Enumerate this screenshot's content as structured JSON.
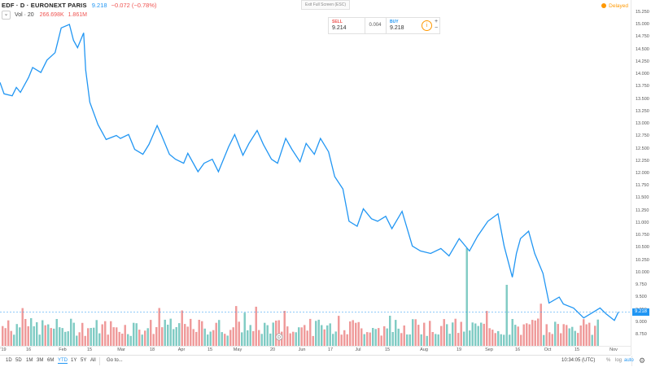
{
  "header": {
    "symbol": "EDF · D · EURONEXT PARIS",
    "last": "9.218",
    "change": "−0.072 (−0.78%)",
    "vol_name": "Vol · 20",
    "vol_value": "266.698K",
    "vol_ma": "1.861M",
    "chevron": "⌄",
    "exit_fullscreen": "Exit Full Screen (ESC)",
    "delayed": "Delayed"
  },
  "trade": {
    "sell_label": "SELL",
    "sell_price": "9.214",
    "spread": "0.004",
    "buy_label": "BUY",
    "buy_price": "9.218",
    "info": "i",
    "plus": "+",
    "minus": "−"
  },
  "price_ticks": [
    "15.250",
    "15.000",
    "14.750",
    "14.500",
    "14.250",
    "14.000",
    "13.750",
    "13.500",
    "13.250",
    "13.000",
    "12.750",
    "12.500",
    "12.250",
    "12.000",
    "11.750",
    "11.500",
    "11.250",
    "11.000",
    "10.750",
    "10.500",
    "10.250",
    "10.000",
    "9.750",
    "9.500",
    "9.250",
    "9.000",
    "8.750"
  ],
  "price_tag": "9.218",
  "time_labels": [
    "'19",
    "16",
    "Feb",
    "15",
    "Mar",
    "18",
    "Apr",
    "15",
    "May",
    "20",
    "Jun",
    "17",
    "Jul",
    "15",
    "Aug",
    "19",
    "Sep",
    "16",
    "Oct",
    "15",
    "Nov"
  ],
  "toolbar": {
    "ranges": [
      "1D",
      "5D",
      "1M",
      "3M",
      "6M",
      "YTD",
      "1Y",
      "5Y",
      "All"
    ],
    "active_range": "YTD",
    "goto": "Go to...",
    "clock": "10:34:05 (UTC)",
    "percent": "%",
    "log": "log",
    "auto": "auto",
    "settings_icon": "gear-icon"
  },
  "marker": "D",
  "colors": {
    "line": "#2196f3",
    "vol_up": "#80cbc4",
    "vol_down": "#ef9a9a"
  },
  "chart_data": {
    "type": "line",
    "title": "EDF · D · EURONEXT PARIS",
    "y_range": [
      8.6,
      15.4
    ],
    "x_range": [
      "2019-01-01",
      "2019-11-02"
    ],
    "series": [
      {
        "name": "EDF",
        "x": [
          "2019-01-01",
          "2019-01-03",
          "2019-01-07",
          "2019-01-09",
          "2019-01-11",
          "2019-01-15",
          "2019-01-17",
          "2019-01-21",
          "2019-01-24",
          "2019-01-28",
          "2019-01-31",
          "2019-02-04",
          "2019-02-06",
          "2019-02-08",
          "2019-02-11",
          "2019-02-12",
          "2019-02-14",
          "2019-02-18",
          "2019-02-22",
          "2019-02-27",
          "2019-03-01",
          "2019-03-05",
          "2019-03-08",
          "2019-03-12",
          "2019-03-15",
          "2019-03-19",
          "2019-03-21",
          "2019-03-25",
          "2019-03-28",
          "2019-04-01",
          "2019-04-03",
          "2019-04-08",
          "2019-04-11",
          "2019-04-15",
          "2019-04-18",
          "2019-04-23",
          "2019-04-26",
          "2019-04-30",
          "2019-05-03",
          "2019-05-07",
          "2019-05-10",
          "2019-05-14",
          "2019-05-17",
          "2019-05-21",
          "2019-05-24",
          "2019-05-28",
          "2019-05-31",
          "2019-06-04",
          "2019-06-07",
          "2019-06-11",
          "2019-06-14",
          "2019-06-18",
          "2019-06-21",
          "2019-06-25",
          "2019-06-28",
          "2019-07-02",
          "2019-07-05",
          "2019-07-09",
          "2019-07-12",
          "2019-07-17",
          "2019-07-22",
          "2019-07-26",
          "2019-07-31",
          "2019-08-05",
          "2019-08-09",
          "2019-08-14",
          "2019-08-19",
          "2019-08-23",
          "2019-08-28",
          "2019-09-02",
          "2019-09-05",
          "2019-09-09",
          "2019-09-11",
          "2019-09-13",
          "2019-09-17",
          "2019-09-20",
          "2019-09-24",
          "2019-09-27",
          "2019-10-02",
          "2019-10-04",
          "2019-10-09",
          "2019-10-14",
          "2019-10-18",
          "2019-10-22",
          "2019-10-25",
          "2019-10-29",
          "2019-10-31"
        ],
        "y": [
          13.85,
          13.62,
          13.58,
          13.75,
          13.65,
          13.95,
          14.15,
          14.05,
          14.3,
          14.45,
          14.95,
          15.02,
          14.7,
          14.55,
          14.85,
          14.1,
          13.45,
          13.0,
          12.7,
          12.78,
          12.72,
          12.8,
          12.5,
          12.4,
          12.6,
          12.98,
          12.8,
          12.4,
          12.3,
          12.22,
          12.42,
          12.05,
          12.22,
          12.3,
          12.05,
          12.55,
          12.8,
          12.38,
          12.62,
          12.88,
          12.6,
          12.3,
          12.22,
          12.72,
          12.5,
          12.25,
          12.62,
          12.4,
          12.72,
          12.45,
          11.95,
          11.7,
          11.05,
          10.95,
          11.3,
          11.1,
          11.05,
          11.15,
          10.9,
          11.25,
          10.55,
          10.45,
          10.4,
          10.5,
          10.35,
          10.7,
          10.45,
          10.75,
          11.05,
          11.2,
          10.55,
          9.92,
          10.4,
          10.7,
          10.85,
          10.4,
          10.0,
          9.4,
          9.52,
          9.38,
          9.3,
          9.1,
          9.2,
          9.3,
          9.18,
          9.05,
          9.22
        ]
      }
    ],
    "volume_series": {
      "name": "Vol · 20",
      "description_units": "millions"
    }
  }
}
